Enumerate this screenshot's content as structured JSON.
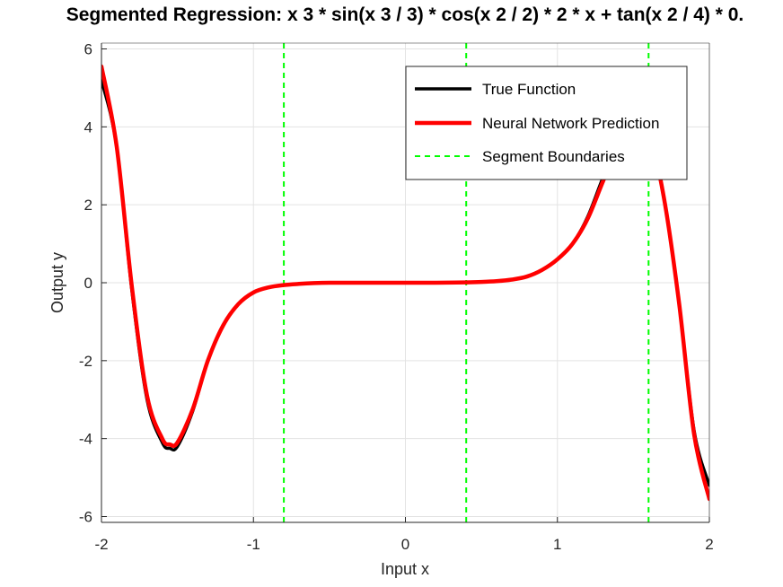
{
  "chart_data": {
    "type": "line",
    "title": "Segmented Regression: x  3 * sin(x  3 / 3) * cos(x  2 / 2) * 2 * x + tan(x  2 / 4) * 0.",
    "xlabel": "Input x",
    "ylabel": "Output y",
    "xlim": [
      -2,
      2
    ],
    "ylim": [
      -6.15,
      6.15
    ],
    "xticks": [
      -2,
      -1,
      0,
      1,
      2
    ],
    "yticks": [
      -6,
      -4,
      -2,
      0,
      2,
      4,
      6
    ],
    "grid": true,
    "legend_position": "top-right",
    "series": [
      {
        "name": "True Function",
        "color": "#000000",
        "x": [
          -2.0,
          -1.9,
          -1.8,
          -1.7,
          -1.6,
          -1.55,
          -1.5,
          -1.4,
          -1.3,
          -1.2,
          -1.1,
          -1.0,
          -0.9,
          -0.8,
          -0.7,
          -0.6,
          -0.5,
          -0.4,
          -0.2,
          0.0,
          0.2,
          0.4,
          0.5,
          0.6,
          0.7,
          0.8,
          0.9,
          1.0,
          1.1,
          1.2,
          1.3,
          1.4,
          1.5,
          1.6,
          1.7,
          1.8,
          1.9,
          2.0
        ],
        "y": [
          5.2,
          3.5,
          -0.2,
          -3.0,
          -4.1,
          -4.25,
          -4.2,
          -3.3,
          -2.0,
          -1.1,
          -0.55,
          -0.25,
          -0.12,
          -0.06,
          -0.03,
          -0.01,
          0.0,
          0.0,
          0.0,
          0.0,
          0.0,
          0.01,
          0.02,
          0.04,
          0.08,
          0.16,
          0.33,
          0.6,
          1.0,
          1.7,
          2.7,
          3.6,
          4.1,
          3.9,
          2.2,
          -0.5,
          -3.8,
          -5.2
        ]
      },
      {
        "name": "Neural Network Prediction",
        "color": "#ff0000",
        "x": [
          -2.0,
          -1.9,
          -1.8,
          -1.7,
          -1.6,
          -1.55,
          -1.5,
          -1.4,
          -1.3,
          -1.2,
          -1.1,
          -1.0,
          -0.9,
          -0.8,
          -0.7,
          -0.6,
          -0.5,
          -0.4,
          -0.2,
          0.0,
          0.2,
          0.4,
          0.5,
          0.6,
          0.7,
          0.8,
          0.9,
          1.0,
          1.1,
          1.2,
          1.3,
          1.4,
          1.5,
          1.6,
          1.7,
          1.8,
          1.9,
          2.0
        ],
        "y": [
          5.55,
          3.5,
          -0.1,
          -2.9,
          -4.0,
          -4.15,
          -4.1,
          -3.25,
          -2.0,
          -1.1,
          -0.55,
          -0.25,
          -0.12,
          -0.06,
          -0.03,
          -0.01,
          0.0,
          0.0,
          0.0,
          0.0,
          0.0,
          0.01,
          0.02,
          0.04,
          0.08,
          0.16,
          0.33,
          0.6,
          1.0,
          1.65,
          2.6,
          3.5,
          4.0,
          3.85,
          2.2,
          -0.5,
          -3.9,
          -5.55
        ]
      }
    ],
    "boundaries": {
      "name": "Segment Boundaries",
      "color": "#00ff00",
      "x": [
        -0.8,
        0.4,
        1.6
      ]
    }
  }
}
